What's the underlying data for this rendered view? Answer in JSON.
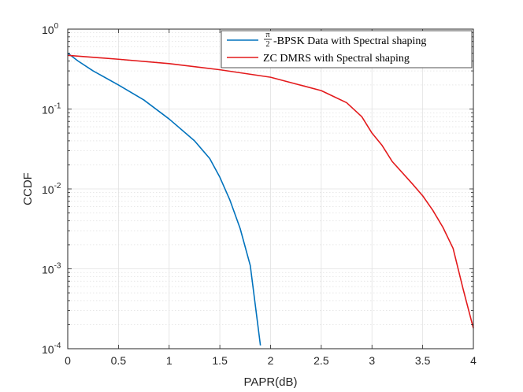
{
  "chart_data": {
    "type": "line",
    "title": "",
    "xlabel": "PAPR(dB)",
    "ylabel": "CCDF",
    "xlim": [
      0,
      4
    ],
    "ylim": [
      0.0001,
      1
    ],
    "yscale": "log",
    "grid": true,
    "minor_grid": true,
    "legend_position": "top-right",
    "x_ticks": [
      {
        "value": 0,
        "label": "0"
      },
      {
        "value": 0.5,
        "label": "0.5"
      },
      {
        "value": 1,
        "label": "1"
      },
      {
        "value": 1.5,
        "label": "1.5"
      },
      {
        "value": 2,
        "label": "2"
      },
      {
        "value": 2.5,
        "label": "2.5"
      },
      {
        "value": 3,
        "label": "3"
      },
      {
        "value": 3.5,
        "label": "3.5"
      },
      {
        "value": 4,
        "label": "4"
      }
    ],
    "y_ticks": [
      {
        "value": 1,
        "base": "10",
        "exp": "0"
      },
      {
        "value": 0.1,
        "base": "10",
        "exp": "-1"
      },
      {
        "value": 0.01,
        "base": "10",
        "exp": "-2"
      },
      {
        "value": 0.001,
        "base": "10",
        "exp": "-3"
      },
      {
        "value": 0.0001,
        "base": "10",
        "exp": "-4"
      }
    ],
    "series": [
      {
        "name_prefix": "π/2",
        "name": "-BPSK Data with Spectral shaping",
        "color": "#0072BD",
        "x": [
          0,
          0.1,
          0.25,
          0.5,
          0.75,
          1.0,
          1.25,
          1.4,
          1.5,
          1.6,
          1.7,
          1.8,
          1.9
        ],
        "y": [
          0.5,
          0.4,
          0.3,
          0.2,
          0.13,
          0.075,
          0.04,
          0.024,
          0.014,
          0.0072,
          0.0032,
          0.0011,
          0.00011
        ]
      },
      {
        "name": "ZC DMRS with Spectral shaping",
        "color": "#E31A1C",
        "x": [
          0,
          0.5,
          1.0,
          1.5,
          2.0,
          2.5,
          2.75,
          2.9,
          3.0,
          3.1,
          3.2,
          3.4,
          3.5,
          3.6,
          3.7,
          3.8,
          3.9,
          4.0
        ],
        "y": [
          0.47,
          0.42,
          0.37,
          0.31,
          0.25,
          0.17,
          0.12,
          0.08,
          0.05,
          0.035,
          0.022,
          0.0115,
          0.0082,
          0.0054,
          0.0033,
          0.0018,
          0.00055,
          0.00018
        ]
      }
    ]
  }
}
